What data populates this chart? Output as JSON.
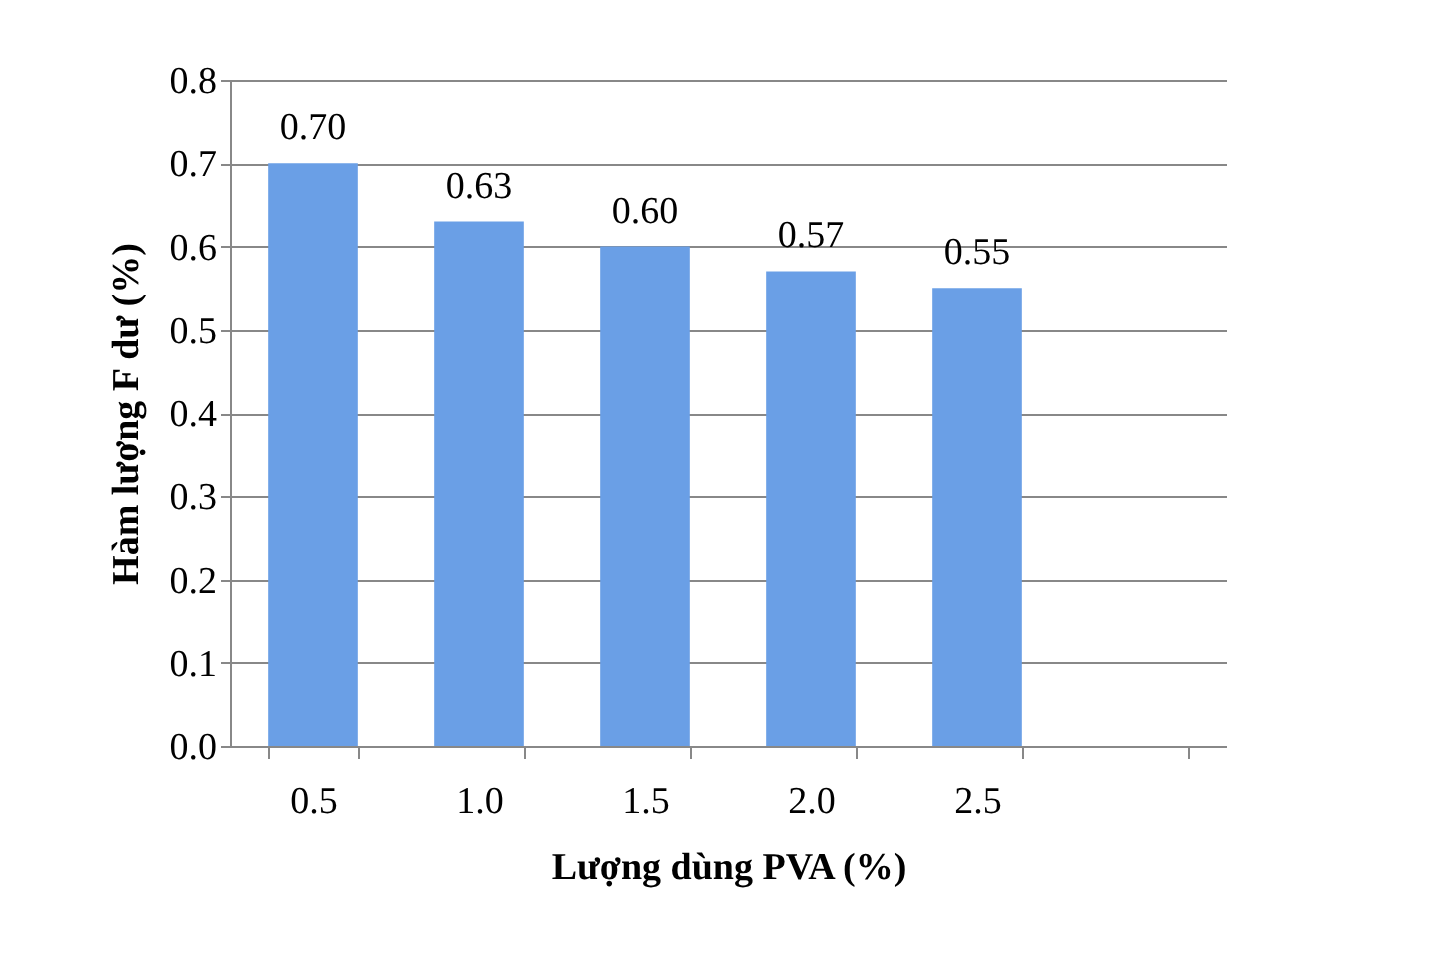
{
  "chart_data": {
    "type": "bar",
    "xlabel": "Lượng dùng PVA (%)",
    "ylabel": "Hàm lượng F dư (%)",
    "categories": [
      "0.5",
      "1.0",
      "1.5",
      "2.0",
      "2.5",
      null
    ],
    "values": [
      0.7,
      0.63,
      0.6,
      0.57,
      0.55,
      null
    ],
    "value_labels": [
      "0.70",
      "0.63",
      "0.60",
      "0.57",
      "0.55",
      null
    ],
    "color": "#6a9fe6",
    "ylim": [
      0,
      0.8
    ],
    "yticks": [
      {
        "value": 0,
        "label": "0.0"
      },
      {
        "value": 0.1,
        "label": "0.1"
      },
      {
        "value": 0.2,
        "label": "0.2"
      },
      {
        "value": 0.3,
        "label": "0.3"
      },
      {
        "value": 0.4,
        "label": "0.4"
      },
      {
        "value": 0.5,
        "label": "0.5"
      },
      {
        "value": 0.6,
        "label": "0.6"
      },
      {
        "value": 0.7,
        "label": "0.7"
      },
      {
        "value": 0.8,
        "label": "0.8"
      }
    ],
    "grid": true
  }
}
